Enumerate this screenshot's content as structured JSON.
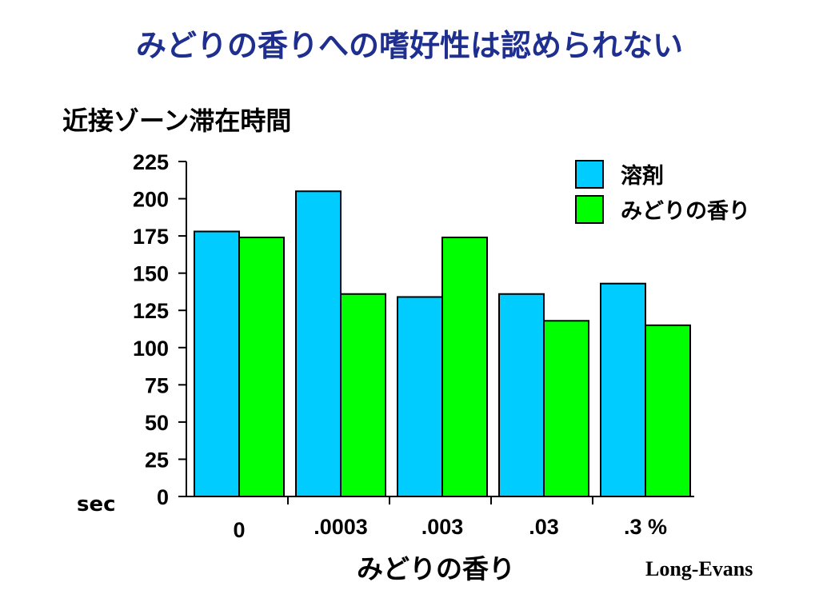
{
  "slide": {
    "title": "みどりの香りへの嗜好性は認められない",
    "subtitle": "近接ゾーン滞在時間",
    "unit": "sec",
    "source": "Long-Evans"
  },
  "chart_data": {
    "type": "bar",
    "title": "近接ゾーン滞在時間",
    "xlabel": "みどりの香り",
    "ylabel": "sec",
    "categories": [
      "0",
      ".0003",
      ".003",
      ".03",
      ".3 %"
    ],
    "series": [
      {
        "name": "溶剤",
        "color": "#00ccff",
        "values": [
          178,
          205,
          134,
          136,
          143
        ]
      },
      {
        "name": "みどりの香り",
        "color": "#00ff00",
        "values": [
          174,
          136,
          174,
          118,
          115
        ]
      }
    ],
    "ylim": [
      0,
      225
    ],
    "yticks": [
      0,
      25,
      50,
      75,
      100,
      125,
      150,
      175,
      200,
      225
    ],
    "grid": false,
    "legend_position": "top-right"
  }
}
